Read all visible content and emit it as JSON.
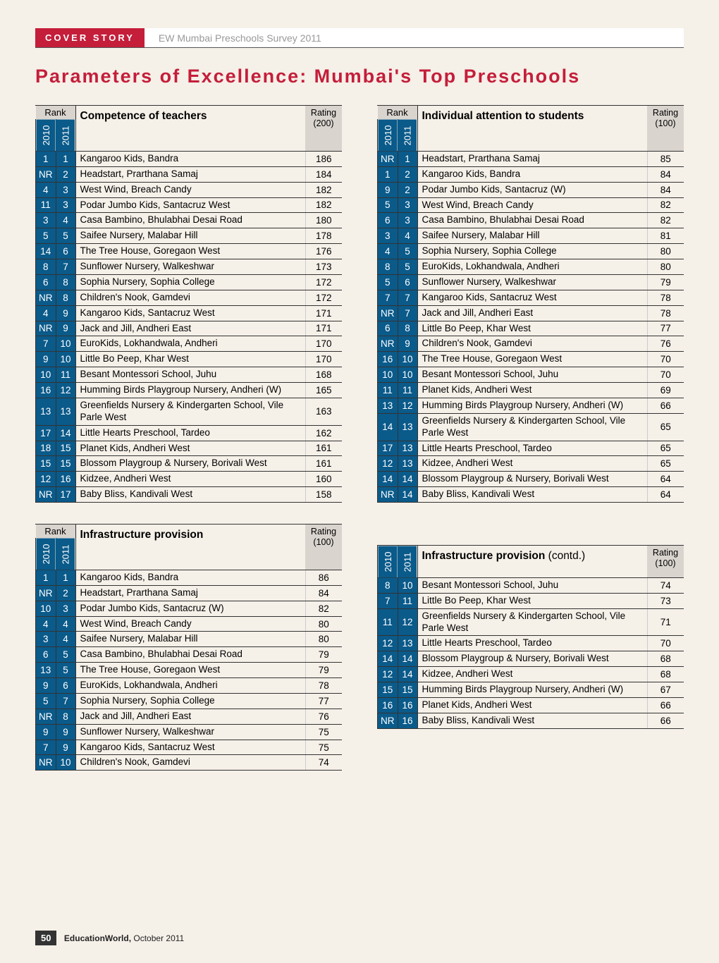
{
  "header": {
    "cover_label": "COVER STORY",
    "subtitle": "EW Mumbai Preschools Survey 2011"
  },
  "main_title": "Parameters of Excellence: Mumbai's Top Preschools",
  "labels": {
    "rank": "Rank",
    "year_2010": "2010",
    "year_2011": "2011",
    "rating_200": "Rating (200)",
    "rating_100": "Rating (100)"
  },
  "colors": {
    "red": "#c41e3a",
    "blue": "#0a5a8a",
    "gray_header": "#d9d4ce",
    "page_bg": "#f5f0e8"
  },
  "tables": {
    "competence": {
      "title": "Competence of teachers",
      "rating_max": 200,
      "rows": [
        {
          "r2010": "1",
          "r2011": "1",
          "name": "Kangaroo Kids, Bandra",
          "rating": 186
        },
        {
          "r2010": "NR",
          "r2011": "2",
          "name": "Headstart, Prarthana Samaj",
          "rating": 184
        },
        {
          "r2010": "4",
          "r2011": "3",
          "name": "West Wind, Breach Candy",
          "rating": 182
        },
        {
          "r2010": "11",
          "r2011": "3",
          "name": "Podar Jumbo Kids, Santacruz West",
          "rating": 182
        },
        {
          "r2010": "3",
          "r2011": "4",
          "name": "Casa Bambino, Bhulabhai Desai Road",
          "rating": 180
        },
        {
          "r2010": "5",
          "r2011": "5",
          "name": "Saifee Nursery, Malabar Hill",
          "rating": 178
        },
        {
          "r2010": "14",
          "r2011": "6",
          "name": "The Tree House, Goregaon West",
          "rating": 176
        },
        {
          "r2010": "8",
          "r2011": "7",
          "name": "Sunflower Nursery, Walkeshwar",
          "rating": 173
        },
        {
          "r2010": "6",
          "r2011": "8",
          "name": "Sophia Nursery, Sophia College",
          "rating": 172
        },
        {
          "r2010": "NR",
          "r2011": "8",
          "name": "Children's Nook, Gamdevi",
          "rating": 172
        },
        {
          "r2010": "4",
          "r2011": "9",
          "name": "Kangaroo Kids, Santacruz West",
          "rating": 171
        },
        {
          "r2010": "NR",
          "r2011": "9",
          "name": "Jack and Jill, Andheri East",
          "rating": 171
        },
        {
          "r2010": "7",
          "r2011": "10",
          "name": "EuroKids, Lokhandwala, Andheri",
          "rating": 170
        },
        {
          "r2010": "9",
          "r2011": "10",
          "name": "Little Bo Peep, Khar West",
          "rating": 170
        },
        {
          "r2010": "10",
          "r2011": "11",
          "name": "Besant Montessori School, Juhu",
          "rating": 168
        },
        {
          "r2010": "16",
          "r2011": "12",
          "name": "Humming Birds Playgroup Nursery, Andheri (W)",
          "rating": 165
        },
        {
          "r2010": "13",
          "r2011": "13",
          "name": "Greenfields Nursery & Kindergarten School, Vile Parle West",
          "rating": 163
        },
        {
          "r2010": "17",
          "r2011": "14",
          "name": "Little Hearts Preschool, Tardeo",
          "rating": 162
        },
        {
          "r2010": "18",
          "r2011": "15",
          "name": "Planet Kids, Andheri West",
          "rating": 161
        },
        {
          "r2010": "15",
          "r2011": "15",
          "name": "Blossom Playgroup & Nursery, Borivali West",
          "rating": 161
        },
        {
          "r2010": "12",
          "r2011": "16",
          "name": "Kidzee, Andheri West",
          "rating": 160
        },
        {
          "r2010": "NR",
          "r2011": "17",
          "name": "Baby Bliss, Kandivali West",
          "rating": 158
        }
      ]
    },
    "attention": {
      "title": "Individual attention to students",
      "rating_max": 100,
      "rows": [
        {
          "r2010": "NR",
          "r2011": "1",
          "name": "Headstart, Prarthana Samaj",
          "rating": 85
        },
        {
          "r2010": "1",
          "r2011": "2",
          "name": "Kangaroo Kids, Bandra",
          "rating": 84
        },
        {
          "r2010": "9",
          "r2011": "2",
          "name": "Podar Jumbo Kids, Santacruz (W)",
          "rating": 84
        },
        {
          "r2010": "5",
          "r2011": "3",
          "name": "West Wind, Breach Candy",
          "rating": 82
        },
        {
          "r2010": "6",
          "r2011": "3",
          "name": "Casa Bambino, Bhulabhai Desai Road",
          "rating": 82
        },
        {
          "r2010": "3",
          "r2011": "4",
          "name": "Saifee Nursery, Malabar Hill",
          "rating": 81
        },
        {
          "r2010": "4",
          "r2011": "5",
          "name": "Sophia Nursery, Sophia College",
          "rating": 80
        },
        {
          "r2010": "8",
          "r2011": "5",
          "name": "EuroKids, Lokhandwala, Andheri",
          "rating": 80
        },
        {
          "r2010": "5",
          "r2011": "6",
          "name": "Sunflower Nursery, Walkeshwar",
          "rating": 79
        },
        {
          "r2010": "7",
          "r2011": "7",
          "name": "Kangaroo Kids, Santacruz West",
          "rating": 78
        },
        {
          "r2010": "NR",
          "r2011": "7",
          "name": "Jack and Jill, Andheri East",
          "rating": 78
        },
        {
          "r2010": "6",
          "r2011": "8",
          "name": "Little Bo Peep, Khar West",
          "rating": 77
        },
        {
          "r2010": "NR",
          "r2011": "9",
          "name": "Children's Nook, Gamdevi",
          "rating": 76
        },
        {
          "r2010": "16",
          "r2011": "10",
          "name": "The Tree House, Goregaon West",
          "rating": 70
        },
        {
          "r2010": "10",
          "r2011": "10",
          "name": "Besant Montessori School, Juhu",
          "rating": 70
        },
        {
          "r2010": "11",
          "r2011": "11",
          "name": "Planet Kids, Andheri West",
          "rating": 69
        },
        {
          "r2010": "13",
          "r2011": "12",
          "name": "Humming Birds Playgroup Nursery, Andheri (W)",
          "rating": 66
        },
        {
          "r2010": "14",
          "r2011": "13",
          "name": "Greenfields Nursery & Kindergarten School, Vile Parle West",
          "rating": 65
        },
        {
          "r2010": "17",
          "r2011": "13",
          "name": "Little Hearts Preschool, Tardeo",
          "rating": 65
        },
        {
          "r2010": "12",
          "r2011": "13",
          "name": "Kidzee, Andheri West",
          "rating": 65
        },
        {
          "r2010": "14",
          "r2011": "14",
          "name": "Blossom Playgroup & Nursery, Borivali West",
          "rating": 64
        },
        {
          "r2010": "NR",
          "r2011": "14",
          "name": "Baby Bliss, Kandivali West",
          "rating": 64
        }
      ]
    },
    "infra_a": {
      "title": "Infrastructure provision",
      "rating_max": 100,
      "rows": [
        {
          "r2010": "1",
          "r2011": "1",
          "name": "Kangaroo Kids, Bandra",
          "rating": 86
        },
        {
          "r2010": "NR",
          "r2011": "2",
          "name": "Headstart, Prarthana Samaj",
          "rating": 84
        },
        {
          "r2010": "10",
          "r2011": "3",
          "name": "Podar Jumbo Kids, Santacruz (W)",
          "rating": 82
        },
        {
          "r2010": "4",
          "r2011": "4",
          "name": "West Wind, Breach Candy",
          "rating": 80
        },
        {
          "r2010": "3",
          "r2011": "4",
          "name": "Saifee Nursery, Malabar Hill",
          "rating": 80
        },
        {
          "r2010": "6",
          "r2011": "5",
          "name": "Casa Bambino, Bhulabhai Desai Road",
          "rating": 79
        },
        {
          "r2010": "13",
          "r2011": "5",
          "name": "The Tree House, Goregaon West",
          "rating": 79
        },
        {
          "r2010": "9",
          "r2011": "6",
          "name": "EuroKids, Lokhandwala, Andheri",
          "rating": 78
        },
        {
          "r2010": "5",
          "r2011": "7",
          "name": "Sophia Nursery, Sophia College",
          "rating": 77
        },
        {
          "r2010": "NR",
          "r2011": "8",
          "name": "Jack and Jill, Andheri East",
          "rating": 76
        },
        {
          "r2010": "9",
          "r2011": "9",
          "name": "Sunflower Nursery, Walkeshwar",
          "rating": 75
        },
        {
          "r2010": "7",
          "r2011": "9",
          "name": "Kangaroo Kids, Santacruz West",
          "rating": 75
        },
        {
          "r2010": "NR",
          "r2011": "10",
          "name": "Children's Nook, Gamdevi",
          "rating": 74
        }
      ]
    },
    "infra_b": {
      "title": "Infrastructure provision",
      "title_suffix": "(contd.)",
      "rating_max": 100,
      "rows": [
        {
          "r2010": "8",
          "r2011": "10",
          "name": "Besant Montessori School, Juhu",
          "rating": 74
        },
        {
          "r2010": "7",
          "r2011": "11",
          "name": "Little Bo Peep, Khar West",
          "rating": 73
        },
        {
          "r2010": "11",
          "r2011": "12",
          "name": "Greenfields Nursery & Kindergarten School, Vile Parle West",
          "rating": 71
        },
        {
          "r2010": "12",
          "r2011": "13",
          "name": "Little Hearts Preschool, Tardeo",
          "rating": 70
        },
        {
          "r2010": "14",
          "r2011": "14",
          "name": "Blossom Playgroup & Nursery, Borivali West",
          "rating": 68
        },
        {
          "r2010": "12",
          "r2011": "14",
          "name": "Kidzee, Andheri West",
          "rating": 68
        },
        {
          "r2010": "15",
          "r2011": "15",
          "name": "Humming Birds Playgroup Nursery, Andheri (W)",
          "rating": 67
        },
        {
          "r2010": "16",
          "r2011": "16",
          "name": "Planet Kids, Andheri West",
          "rating": 66
        },
        {
          "r2010": "NR",
          "r2011": "16",
          "name": "Baby Bliss, Kandivali West",
          "rating": 66
        }
      ]
    }
  },
  "footer": {
    "page": "50",
    "pub": "EducationWorld,",
    "date": "October 2011"
  }
}
